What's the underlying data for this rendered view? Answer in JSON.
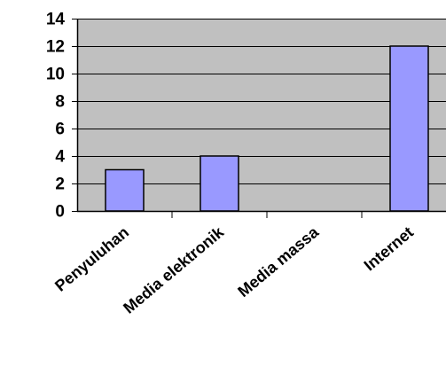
{
  "chart_data": {
    "type": "bar",
    "categories": [
      "Penyuluhan",
      "Media elektronik",
      "Media massa",
      "Internet"
    ],
    "values": [
      3,
      4,
      0,
      12
    ],
    "ylim": [
      0,
      14
    ],
    "yticks": [
      0,
      2,
      4,
      6,
      8,
      10,
      12,
      14
    ],
    "grid": true,
    "legend": "none",
    "colors": {
      "bar_fill": "#9999ff",
      "bar_stroke": "#000000",
      "plot_bg": "#c0c0c0",
      "grid": "#000000"
    }
  }
}
